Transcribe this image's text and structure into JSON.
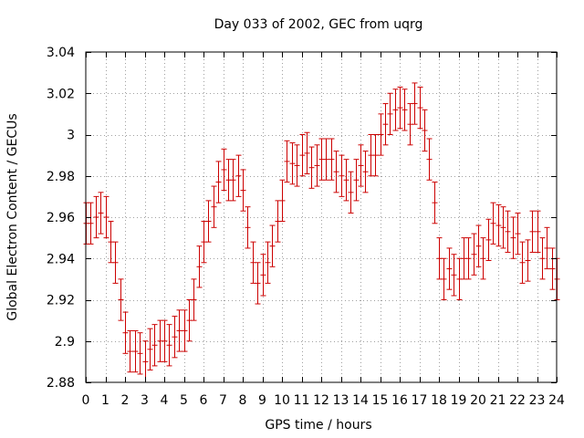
{
  "chart_data": {
    "type": "scatter",
    "title": "Day 033 of 2002, GEC from uqrg",
    "xlabel": "GPS time / hours",
    "ylabel": "Global Electron Content / GECUs",
    "xlim": [
      0,
      24
    ],
    "ylim": [
      2.88,
      3.04
    ],
    "xticks": [
      0,
      1,
      2,
      3,
      4,
      5,
      6,
      7,
      8,
      9,
      10,
      11,
      12,
      13,
      14,
      15,
      16,
      17,
      18,
      19,
      20,
      21,
      22,
      23,
      24
    ],
    "xtick_labels": [
      "0",
      "1",
      "2",
      "3",
      "4",
      "5",
      "6",
      "7",
      "8",
      "9",
      "10",
      "11",
      "12",
      "13",
      "14",
      "15",
      "16",
      "17",
      "18",
      "19",
      "20",
      "21",
      "22",
      "23",
      "24"
    ],
    "yticks": [
      2.88,
      2.9,
      2.92,
      2.94,
      2.96,
      2.98,
      3.0,
      3.02,
      3.04
    ],
    "ytick_labels": [
      "2.88",
      "2.9",
      "2.92",
      "2.94",
      "2.96",
      "2.98",
      "3",
      "3.02",
      "3.04"
    ],
    "grid": true,
    "error_bar_halfwidth": 0.01,
    "series_color": "#cc0000",
    "x": [
      0,
      0.25,
      0.5,
      0.75,
      1,
      1.25,
      1.5,
      1.75,
      2,
      2.25,
      2.5,
      2.75,
      3,
      3.25,
      3.5,
      3.75,
      4,
      4.25,
      4.5,
      4.75,
      5,
      5.25,
      5.5,
      5.75,
      6,
      6.25,
      6.5,
      6.75,
      7,
      7.25,
      7.5,
      7.75,
      8,
      8.25,
      8.5,
      8.75,
      9,
      9.25,
      9.5,
      9.75,
      10,
      10.25,
      10.5,
      10.75,
      11,
      11.25,
      11.5,
      11.75,
      12,
      12.25,
      12.5,
      12.75,
      13,
      13.25,
      13.5,
      13.75,
      14,
      14.25,
      14.5,
      14.75,
      15,
      15.25,
      15.5,
      15.75,
      16,
      16.25,
      16.5,
      16.75,
      17,
      17.25,
      17.5,
      17.75,
      18,
      18.25,
      18.5,
      18.75,
      19,
      19.25,
      19.5,
      19.75,
      20,
      20.25,
      20.5,
      20.75,
      21,
      21.25,
      21.5,
      21.75,
      22,
      22.25,
      22.5,
      22.75,
      23,
      23.25,
      23.5,
      23.75,
      24
    ],
    "y": [
      2.957,
      2.957,
      2.96,
      2.962,
      2.96,
      2.948,
      2.938,
      2.92,
      2.904,
      2.895,
      2.895,
      2.894,
      2.89,
      2.896,
      2.898,
      2.9,
      2.9,
      2.898,
      2.902,
      2.905,
      2.905,
      2.91,
      2.92,
      2.936,
      2.948,
      2.958,
      2.965,
      2.977,
      2.983,
      2.978,
      2.978,
      2.98,
      2.973,
      2.955,
      2.938,
      2.928,
      2.932,
      2.938,
      2.946,
      2.958,
      2.968,
      2.987,
      2.986,
      2.985,
      2.99,
      2.991,
      2.984,
      2.985,
      2.988,
      2.988,
      2.988,
      2.982,
      2.98,
      2.978,
      2.972,
      2.978,
      2.985,
      2.982,
      2.99,
      2.99,
      3.0,
      3.005,
      3.01,
      3.012,
      3.013,
      3.012,
      3.005,
      3.015,
      3.013,
      3.002,
      2.988,
      2.967,
      2.94,
      2.93,
      2.935,
      2.932,
      2.93,
      2.94,
      2.94,
      2.942,
      2.946,
      2.94,
      2.949,
      2.957,
      2.956,
      2.955,
      2.953,
      2.95,
      2.952,
      2.938,
      2.939,
      2.953,
      2.953,
      2.94,
      2.945,
      2.935,
      2.93
    ]
  }
}
